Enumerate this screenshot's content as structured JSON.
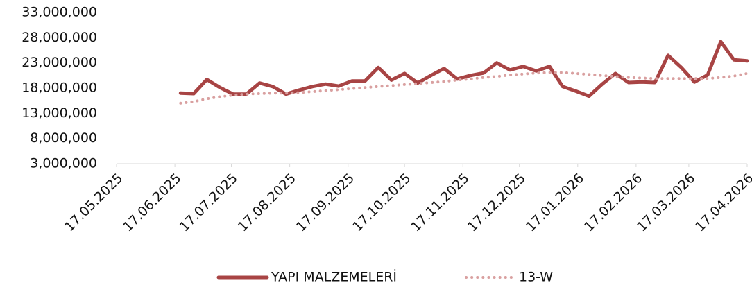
{
  "chart_data": {
    "type": "line",
    "x": [
      "20.06.2025",
      "27.06.2025",
      "04.07.2025",
      "11.07.2025",
      "18.07.2025",
      "25.07.2025",
      "01.08.2025",
      "08.08.2025",
      "15.08.2025",
      "22.08.2025",
      "29.08.2025",
      "05.09.2025",
      "12.09.2025",
      "19.09.2025",
      "26.09.2025",
      "03.10.2025",
      "10.10.2025",
      "17.10.2025",
      "24.10.2025",
      "31.10.2025",
      "07.11.2025",
      "14.11.2025",
      "21.11.2025",
      "28.11.2025",
      "05.12.2025",
      "12.12.2025",
      "19.12.2025",
      "26.12.2025",
      "02.01.2026",
      "09.01.2026",
      "16.01.2026",
      "23.01.2026",
      "30.01.2026",
      "06.02.2026",
      "13.02.2026",
      "20.02.2026",
      "27.02.2026",
      "06.03.2026",
      "13.03.2026",
      "20.03.2026",
      "27.03.2026",
      "03.04.2026",
      "10.04.2026",
      "17.04.2026"
    ],
    "series": [
      {
        "name": "YAPI MALZEMELERİ",
        "color": "#a84444",
        "style": "solid",
        "values": [
          17000000,
          16900000,
          19700000,
          18100000,
          16800000,
          16800000,
          19000000,
          18300000,
          16800000,
          17600000,
          18300000,
          18800000,
          18400000,
          19400000,
          19400000,
          22100000,
          19600000,
          20900000,
          19000000,
          20500000,
          21900000,
          19800000,
          20500000,
          21000000,
          23000000,
          21600000,
          22300000,
          21400000,
          22300000,
          18300000,
          17400000,
          16400000,
          18800000,
          20900000,
          19100000,
          19200000,
          19100000,
          24500000,
          22100000,
          19200000,
          20600000,
          27200000,
          23600000,
          23400000
        ]
      },
      {
        "name": "13-W",
        "color": "#d9a0a0",
        "style": "dotted",
        "values": [
          15000000,
          15300000,
          15900000,
          16300000,
          16600000,
          16800000,
          16900000,
          17000000,
          17000000,
          17100000,
          17300000,
          17500000,
          17700000,
          17900000,
          18100000,
          18300000,
          18500000,
          18700000,
          18900000,
          19100000,
          19300000,
          19600000,
          19800000,
          20100000,
          20300000,
          20600000,
          20800000,
          21000000,
          21100000,
          21100000,
          20900000,
          20700000,
          20500000,
          20300000,
          20100000,
          20000000,
          19900000,
          19900000,
          19900000,
          19900000,
          19900000,
          20100000,
          20400000,
          20900000
        ]
      }
    ],
    "xlim": [
      "17.05.2025",
      "17.04.2026"
    ],
    "xticks": [
      "17.05.2025",
      "17.06.2025",
      "17.07.2025",
      "17.08.2025",
      "17.09.2025",
      "17.10.2025",
      "17.11.2025",
      "17.12.2025",
      "17.01.2026",
      "17.02.2026",
      "17.03.2026",
      "17.04.2026"
    ],
    "ylim": [
      3000000,
      33000000
    ],
    "yticks": [
      {
        "value": 3000000,
        "label": "3,000,000"
      },
      {
        "value": 8000000,
        "label": "8,000,000"
      },
      {
        "value": 13000000,
        "label": "13,000,000"
      },
      {
        "value": 18000000,
        "label": "18,000,000"
      },
      {
        "value": 23000000,
        "label": "23,000,000"
      },
      {
        "value": 28000000,
        "label": "28,000,000"
      },
      {
        "value": 33000000,
        "label": "33,000,000"
      }
    ],
    "legend": "bottom"
  }
}
